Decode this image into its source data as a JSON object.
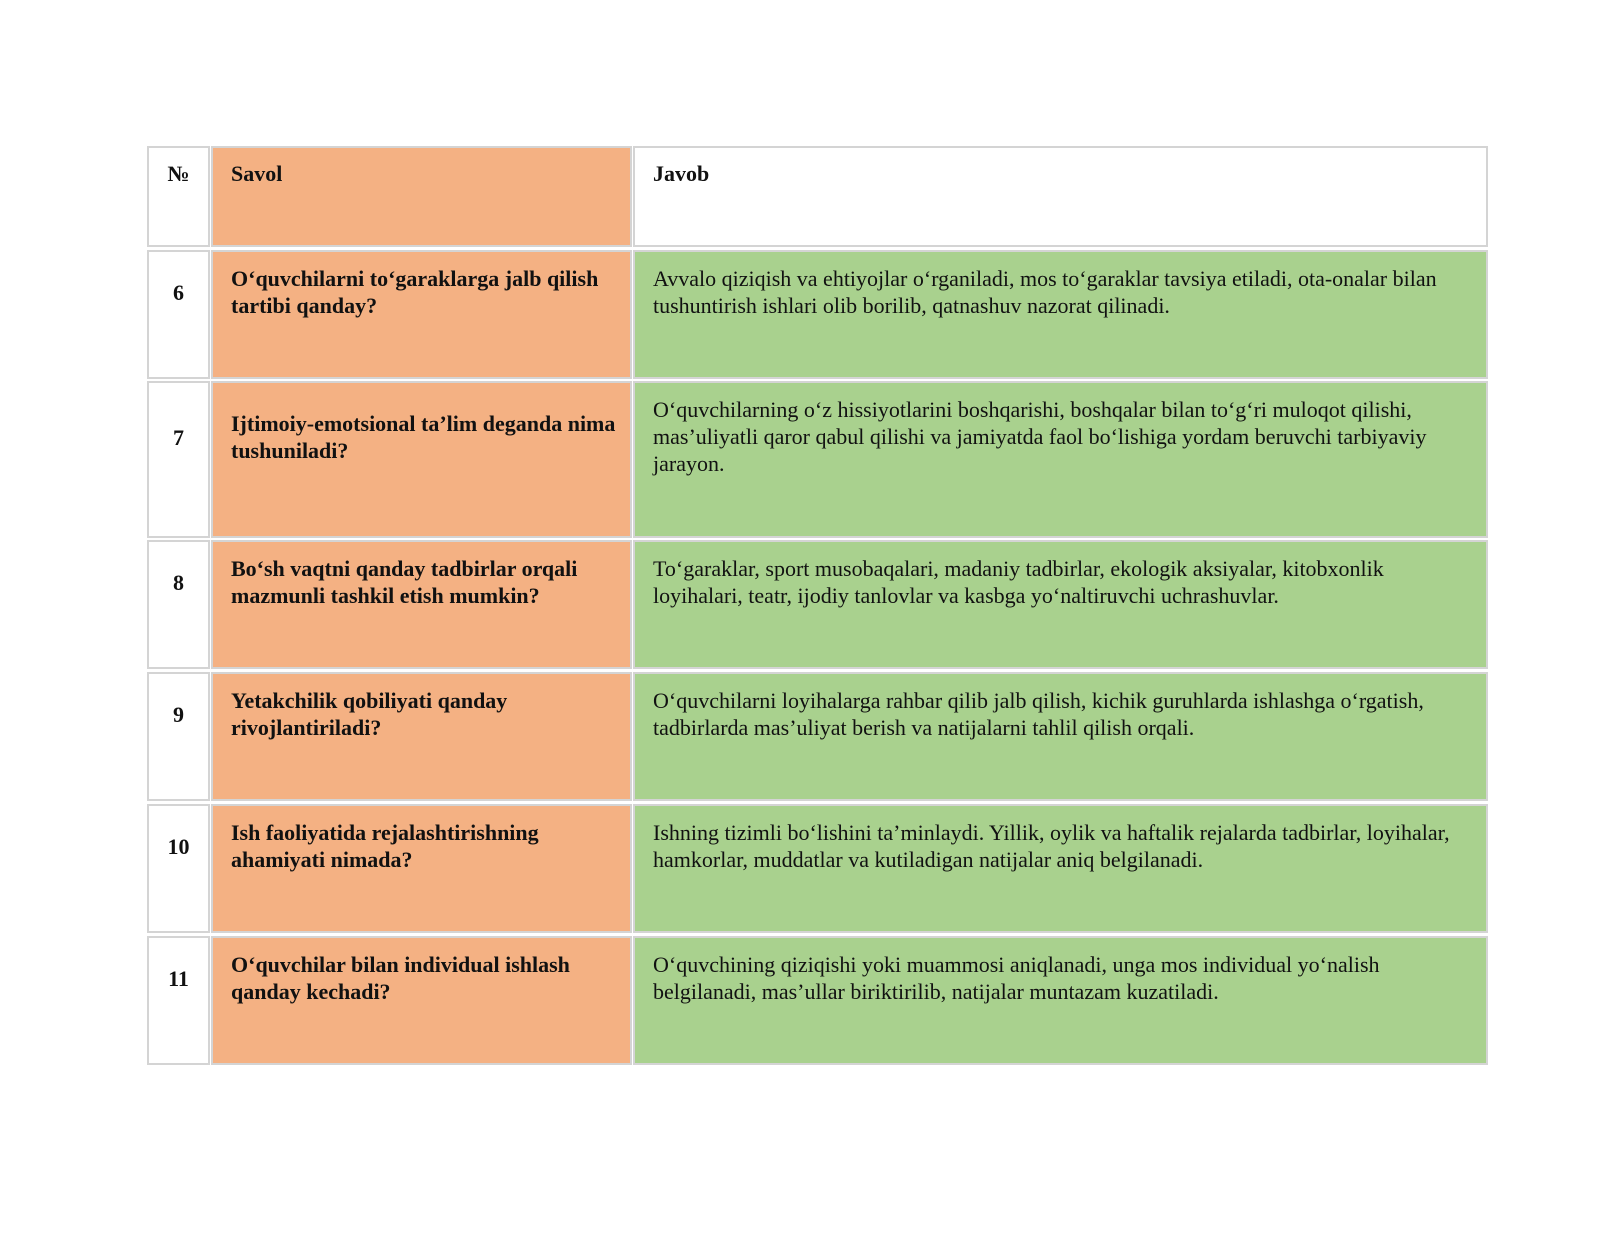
{
  "table": {
    "header": [
      "№",
      "Savol",
      "Javob"
    ],
    "rows": [
      [
        "6",
        "O‘quvchilarni to‘garaklarga jalb qilish tartibi qanday?",
        "Avvalo qiziqish va ehtiyojlar o‘rganiladi, mos to‘garaklar tavsiya etiladi, ota-onalar bilan tushuntirish ishlari olib borilib, qatnashuv nazorat qilinadi."
      ],
      [
        "7",
        "Ijtimoiy-emotsional ta’lim deganda nima tushuniladi?",
        "O‘quvchilarning o‘z hissiyotlarini boshqarishi, boshqalar bilan to‘g‘ri muloqot qilishi, mas’uliyatli qaror qabul qilishi va jamiyatda faol bo‘lishiga yordam beruvchi tarbiyaviy jarayon."
      ],
      [
        "8",
        "Bo‘sh vaqtni qanday tadbirlar orqali mazmunli tashkil etish mumkin?",
        "To‘garaklar, sport musobaqalari, madaniy tadbirlar, ekologik aksiyalar, kitobxonlik loyihalari, teatr, ijodiy tanlovlar va kasbga yo‘naltiruvchi uchrashuvlar."
      ],
      [
        "9",
        "Yetakchilik qobiliyati qanday rivojlantiriladi?",
        "O‘quvchilarni loyihalarga rahbar qilib jalb qilish, kichik guruhlarda ishlashga o‘rgatish, tadbirlarda mas’uliyat berish va natijalarni tahlil qilish orqali."
      ],
      [
        "10",
        "Ish faoliyatida rejalashtirishning ahamiyati nimada?",
        "Ishning tizimli bo‘lishini ta’minlaydi. Yillik, oylik va haftalik rejalarda tadbirlar, loyihalar, hamkorlar, muddatlar va kutiladigan natijalar aniq belgilanadi."
      ],
      [
        "11",
        "O‘quvchilar bilan individual ishlash qanday kechadi?",
        "O‘quvchining qiziqishi yoki muammosi aniqlanadi, unga mos individual yo‘nalish belgilanadi, mas’ullar biriktirilib, natijalar muntazam kuzatiladi."
      ]
    ]
  }
}
